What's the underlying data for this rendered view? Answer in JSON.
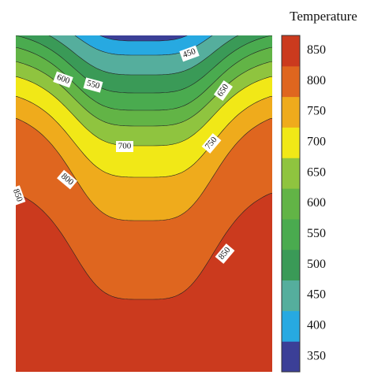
{
  "chart_data": {
    "type": "contour",
    "colorbar_title": "Temperature",
    "levels": [
      350,
      400,
      450,
      500,
      550,
      600,
      650,
      700,
      750,
      800,
      850
    ],
    "colors": [
      "#3b3f97",
      "#27a9e1",
      "#55ae9d",
      "#3a9a57",
      "#4aab4f",
      "#62b446",
      "#8fc43f",
      "#f1e817",
      "#efab1c",
      "#df661f",
      "#cb3a1e"
    ],
    "contour_labels": [
      450,
      550,
      600,
      650,
      700,
      750,
      800,
      850,
      850
    ]
  }
}
